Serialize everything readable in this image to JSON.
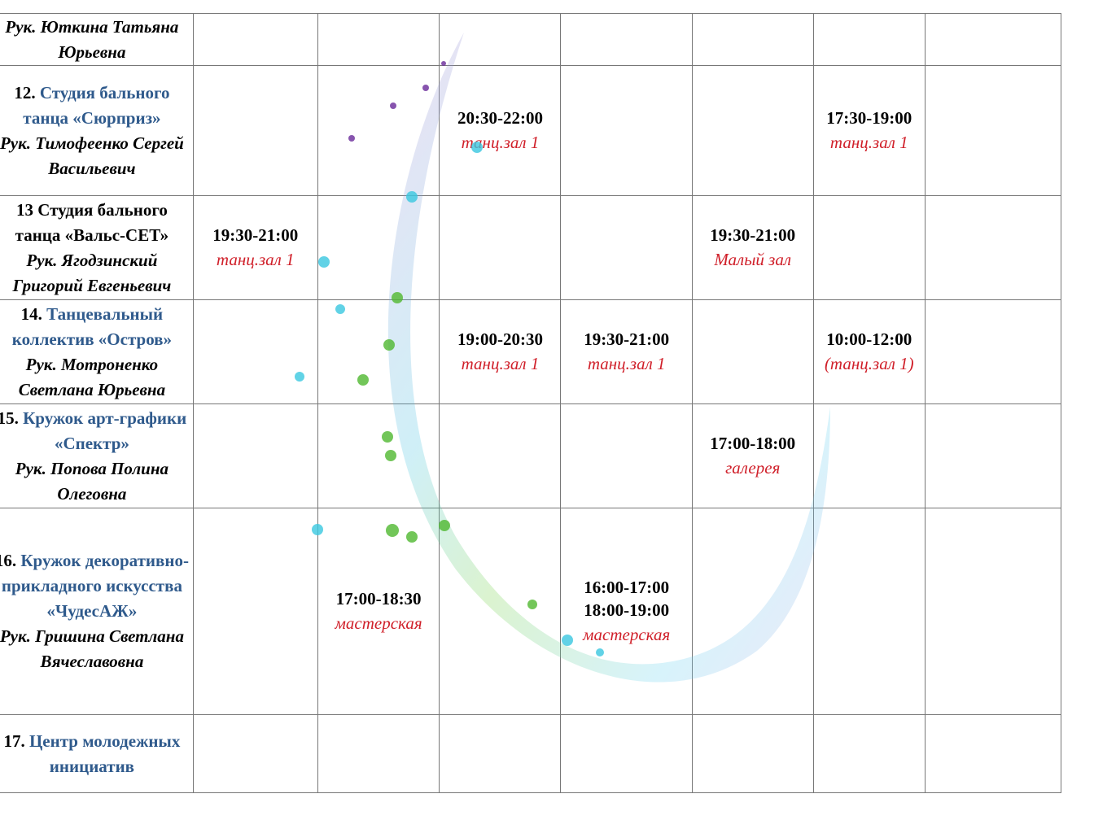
{
  "table": {
    "rows": [
      {
        "leader": "Рук. Юткина Татьяна Юрьевна",
        "cells": [
          null,
          null,
          null,
          null,
          null,
          null,
          null
        ]
      },
      {
        "number": "12.",
        "title": "Студия бального танца «Сюрприз»",
        "leader": "Рук. Тимофеенко Сергей Васильевич",
        "cells": [
          null,
          null,
          {
            "times": [
              "20:30-22:00"
            ],
            "room": "танц.зал 1"
          },
          null,
          null,
          {
            "times": [
              "17:30-19:00"
            ],
            "room": "танц.зал 1"
          },
          null
        ]
      },
      {
        "number": "13",
        "title": "Студия бального танца «Вальс-СЕТ»",
        "title_color": "#000000",
        "leader": "Рук. Ягодзинский Григорий Евгеньевич",
        "cells": [
          {
            "times": [
              "19:30-21:00"
            ],
            "room": "танц.зал 1"
          },
          null,
          null,
          null,
          {
            "times": [
              "19:30-21:00"
            ],
            "room": "Малый зал"
          },
          null,
          null
        ]
      },
      {
        "number": "14.",
        "title": "Танцевальный коллектив «Остров»",
        "leader": "Рук. Мотроненко Светлана Юрьевна",
        "cells": [
          null,
          null,
          {
            "times": [
              "19:00-20:30"
            ],
            "room": "танц.зал 1"
          },
          {
            "times": [
              "19:30-21:00"
            ],
            "room": "танц.зал 1"
          },
          null,
          {
            "times": [
              "10:00-12:00"
            ],
            "room": "(танц.зал 1)"
          },
          null
        ]
      },
      {
        "number": "15.",
        "title": "Кружок арт-графики «Спектр»",
        "leader": "Рук. Попова Полина Олеговна",
        "cells": [
          null,
          null,
          null,
          null,
          {
            "times": [
              "17:00-18:00"
            ],
            "room": "галерея"
          },
          null,
          null
        ]
      },
      {
        "number": "16.",
        "title": "Кружок декоративно-прикладного искусства «ЧудесАЖ»",
        "leader": "Рук. Гришина Светлана Вячеславовна",
        "cells": [
          null,
          {
            "times": [
              "17:00-18:30"
            ],
            "room": "мастерская"
          },
          null,
          {
            "times": [
              "16:00-17:00",
              "18:00-19:00"
            ],
            "room": "мастерская"
          },
          null,
          null,
          null
        ]
      },
      {
        "number": "17.",
        "title": "Центр молодежных инициатив",
        "cells": [
          null,
          null,
          null,
          null,
          null,
          null,
          null
        ]
      }
    ]
  }
}
